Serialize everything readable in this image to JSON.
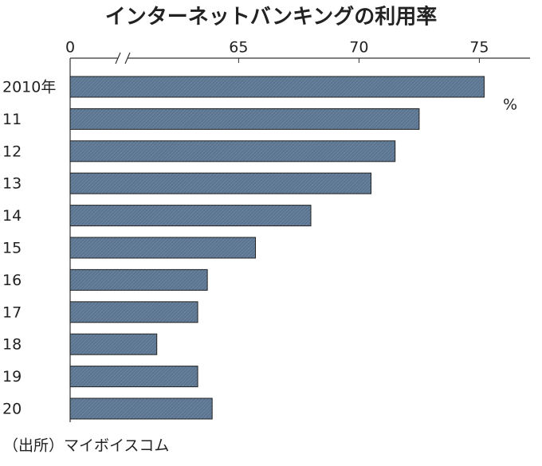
{
  "chart_data": {
    "type": "bar",
    "orientation": "horizontal",
    "title": "インターネットバンキングの利用率",
    "categories": [
      "2010年",
      "11",
      "12",
      "13",
      "14",
      "15",
      "16",
      "17",
      "18",
      "19",
      "20"
    ],
    "values": [
      75.2,
      72.5,
      71.5,
      70.5,
      68.0,
      65.7,
      63.7,
      63.3,
      61.6,
      63.3,
      63.9
    ],
    "color": "#5b7490",
    "xlim": [
      0,
      77
    ],
    "axis_break": [
      0,
      58
    ],
    "xticks": [
      0,
      65,
      70,
      75
    ],
    "unit_label": "%",
    "source": "（出所）マイボイスコム"
  }
}
